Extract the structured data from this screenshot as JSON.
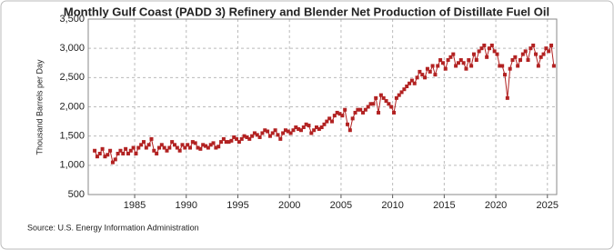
{
  "chart_data": {
    "type": "line",
    "title": "Monthly Gulf Coast (PADD 3) Refinery and Blender Net Production of Distillate Fuel Oil",
    "y_label": "Thousand Barrels per Day",
    "source": "Source: U.S. Energy Information Administration",
    "color": "#b22222",
    "grid": true,
    "xlim": [
      1980.5,
      2025.9
    ],
    "xticks": [
      1985,
      1990,
      1995,
      2000,
      2005,
      2010,
      2015,
      2020,
      2025
    ],
    "ylim": [
      500,
      3500
    ],
    "yticks": [
      500,
      {
        "value": 1000,
        "label": "1,000"
      },
      {
        "value": 1500,
        "label": "1,500"
      },
      {
        "value": 2000,
        "label": "2,000"
      },
      {
        "value": 2500,
        "label": "2,500"
      },
      {
        "value": 3000,
        "label": "3,000"
      },
      {
        "value": 3500,
        "label": "3,500"
      }
    ],
    "x": [
      1981.125,
      1981.375,
      1981.625,
      1981.875,
      1982.125,
      1982.375,
      1982.625,
      1982.875,
      1983.125,
      1983.375,
      1983.625,
      1983.875,
      1984.125,
      1984.375,
      1984.625,
      1984.875,
      1985.125,
      1985.375,
      1985.625,
      1985.875,
      1986.125,
      1986.375,
      1986.625,
      1986.875,
      1987.125,
      1987.375,
      1987.625,
      1987.875,
      1988.125,
      1988.375,
      1988.625,
      1988.875,
      1989.125,
      1989.375,
      1989.625,
      1989.875,
      1990.125,
      1990.375,
      1990.625,
      1990.875,
      1991.125,
      1991.375,
      1991.625,
      1991.875,
      1992.125,
      1992.375,
      1992.625,
      1992.875,
      1993.125,
      1993.375,
      1993.625,
      1993.875,
      1994.125,
      1994.375,
      1994.625,
      1994.875,
      1995.125,
      1995.375,
      1995.625,
      1995.875,
      1996.125,
      1996.375,
      1996.625,
      1996.875,
      1997.125,
      1997.375,
      1997.625,
      1997.875,
      1998.125,
      1998.375,
      1998.625,
      1998.875,
      1999.125,
      1999.375,
      1999.625,
      1999.875,
      2000.125,
      2000.375,
      2000.625,
      2000.875,
      2001.125,
      2001.375,
      2001.625,
      2001.875,
      2002.125,
      2002.375,
      2002.625,
      2002.875,
      2003.125,
      2003.375,
      2003.625,
      2003.875,
      2004.125,
      2004.375,
      2004.625,
      2004.875,
      2005.125,
      2005.375,
      2005.625,
      2005.875,
      2006.125,
      2006.375,
      2006.625,
      2006.875,
      2007.125,
      2007.375,
      2007.625,
      2007.875,
      2008.125,
      2008.375,
      2008.625,
      2008.875,
      2009.125,
      2009.375,
      2009.625,
      2009.875,
      2010.125,
      2010.375,
      2010.625,
      2010.875,
      2011.125,
      2011.375,
      2011.625,
      2011.875,
      2012.125,
      2012.375,
      2012.625,
      2012.875,
      2013.125,
      2013.375,
      2013.625,
      2013.875,
      2014.125,
      2014.375,
      2014.625,
      2014.875,
      2015.125,
      2015.375,
      2015.625,
      2015.875,
      2016.125,
      2016.375,
      2016.625,
      2016.875,
      2017.125,
      2017.375,
      2017.625,
      2017.875,
      2018.125,
      2018.375,
      2018.625,
      2018.875,
      2019.125,
      2019.375,
      2019.625,
      2019.875,
      2020.125,
      2020.375,
      2020.625,
      2020.875,
      2021.125,
      2021.375,
      2021.625,
      2021.875,
      2022.125,
      2022.375,
      2022.625,
      2022.875,
      2023.125,
      2023.375,
      2023.625,
      2023.875,
      2024.125,
      2024.375,
      2024.625,
      2024.875,
      2025.125,
      2025.375,
      2025.625
    ],
    "values": [
      1250,
      1150,
      1200,
      1280,
      1150,
      1180,
      1250,
      1050,
      1100,
      1200,
      1250,
      1200,
      1280,
      1200,
      1250,
      1300,
      1200,
      1300,
      1350,
      1400,
      1300,
      1350,
      1450,
      1250,
      1200,
      1300,
      1350,
      1300,
      1250,
      1300,
      1400,
      1350,
      1300,
      1250,
      1350,
      1300,
      1350,
      1300,
      1400,
      1380,
      1300,
      1280,
      1350,
      1330,
      1300,
      1350,
      1380,
      1300,
      1320,
      1400,
      1450,
      1400,
      1400,
      1420,
      1480,
      1450,
      1400,
      1450,
      1500,
      1480,
      1450,
      1500,
      1550,
      1520,
      1480,
      1550,
      1600,
      1580,
      1500,
      1550,
      1600,
      1520,
      1450,
      1550,
      1600,
      1580,
      1550,
      1600,
      1650,
      1620,
      1600,
      1650,
      1700,
      1680,
      1550,
      1600,
      1650,
      1620,
      1650,
      1700,
      1750,
      1800,
      1750,
      1850,
      1900,
      1880,
      1850,
      1950,
      1700,
      1600,
      1800,
      1900,
      1950,
      1950,
      1900,
      1950,
      2000,
      2050,
      2050,
      2150,
      1900,
      2200,
      2150,
      2100,
      2050,
      2000,
      1900,
      2150,
      2200,
      2250,
      2300,
      2350,
      2400,
      2450,
      2400,
      2500,
      2600,
      2550,
      2500,
      2650,
      2600,
      2700,
      2550,
      2700,
      2800,
      2750,
      2650,
      2800,
      2850,
      2900,
      2700,
      2750,
      2800,
      2750,
      2650,
      2800,
      2700,
      2900,
      2800,
      2950,
      3000,
      3050,
      2850,
      3000,
      3050,
      2950,
      2900,
      2700,
      2700,
      2550,
      2150,
      2650,
      2800,
      2850,
      2700,
      2800,
      2900,
      2950,
      2800,
      3000,
      3050,
      2900,
      2700,
      2850,
      2900,
      3000,
      2950,
      3050,
      2700
    ]
  }
}
